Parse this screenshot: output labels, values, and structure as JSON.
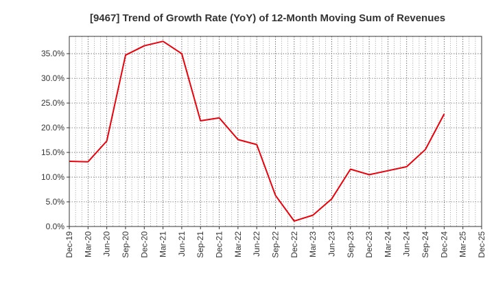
{
  "chart_data": {
    "type": "line",
    "title": "[9467]  Trend of Growth Rate (YoY) of 12-Month Moving Sum of Revenues",
    "xlabel": "",
    "ylabel": "",
    "x_tick_labels": [
      "Dec-19",
      "Mar-20",
      "Jun-20",
      "Sep-20",
      "Dec-20",
      "Mar-21",
      "Jun-21",
      "Sep-21",
      "Dec-21",
      "Mar-22",
      "Jun-22",
      "Sep-22",
      "Dec-22",
      "Mar-23",
      "Jun-23",
      "Sep-23",
      "Dec-23",
      "Mar-24",
      "Jun-24",
      "Sep-24",
      "Dec-24",
      "Mar-25",
      "Dec-25"
    ],
    "y_tick_labels": [
      "0.0%",
      "5.0%",
      "10.0%",
      "15.0%",
      "20.0%",
      "25.0%",
      "30.0%",
      "35.0%"
    ],
    "y_ticks": [
      0,
      5,
      10,
      15,
      20,
      25,
      30,
      35
    ],
    "ylim": [
      0,
      38.5
    ],
    "grid": true,
    "grid_style": "dotted",
    "line_color": "#e8000b",
    "series": [
      {
        "x": [
          "Dec-19",
          "Mar-20",
          "Jun-20",
          "Sep-20",
          "Dec-20",
          "Mar-21",
          "Jun-21",
          "Sep-21",
          "Dec-21",
          "Mar-22",
          "Jun-22",
          "Sep-22",
          "Dec-22",
          "Mar-23",
          "Jun-23",
          "Sep-23",
          "Dec-23",
          "Mar-24",
          "Jun-24",
          "Sep-24",
          "Dec-24"
        ],
        "values": [
          13.2,
          13.1,
          17.3,
          34.7,
          36.6,
          37.5,
          35.0,
          21.4,
          22.0,
          17.6,
          16.6,
          6.3,
          1.1,
          2.3,
          5.6,
          11.6,
          10.5,
          11.3,
          12.1,
          15.6,
          22.8
        ]
      }
    ]
  }
}
